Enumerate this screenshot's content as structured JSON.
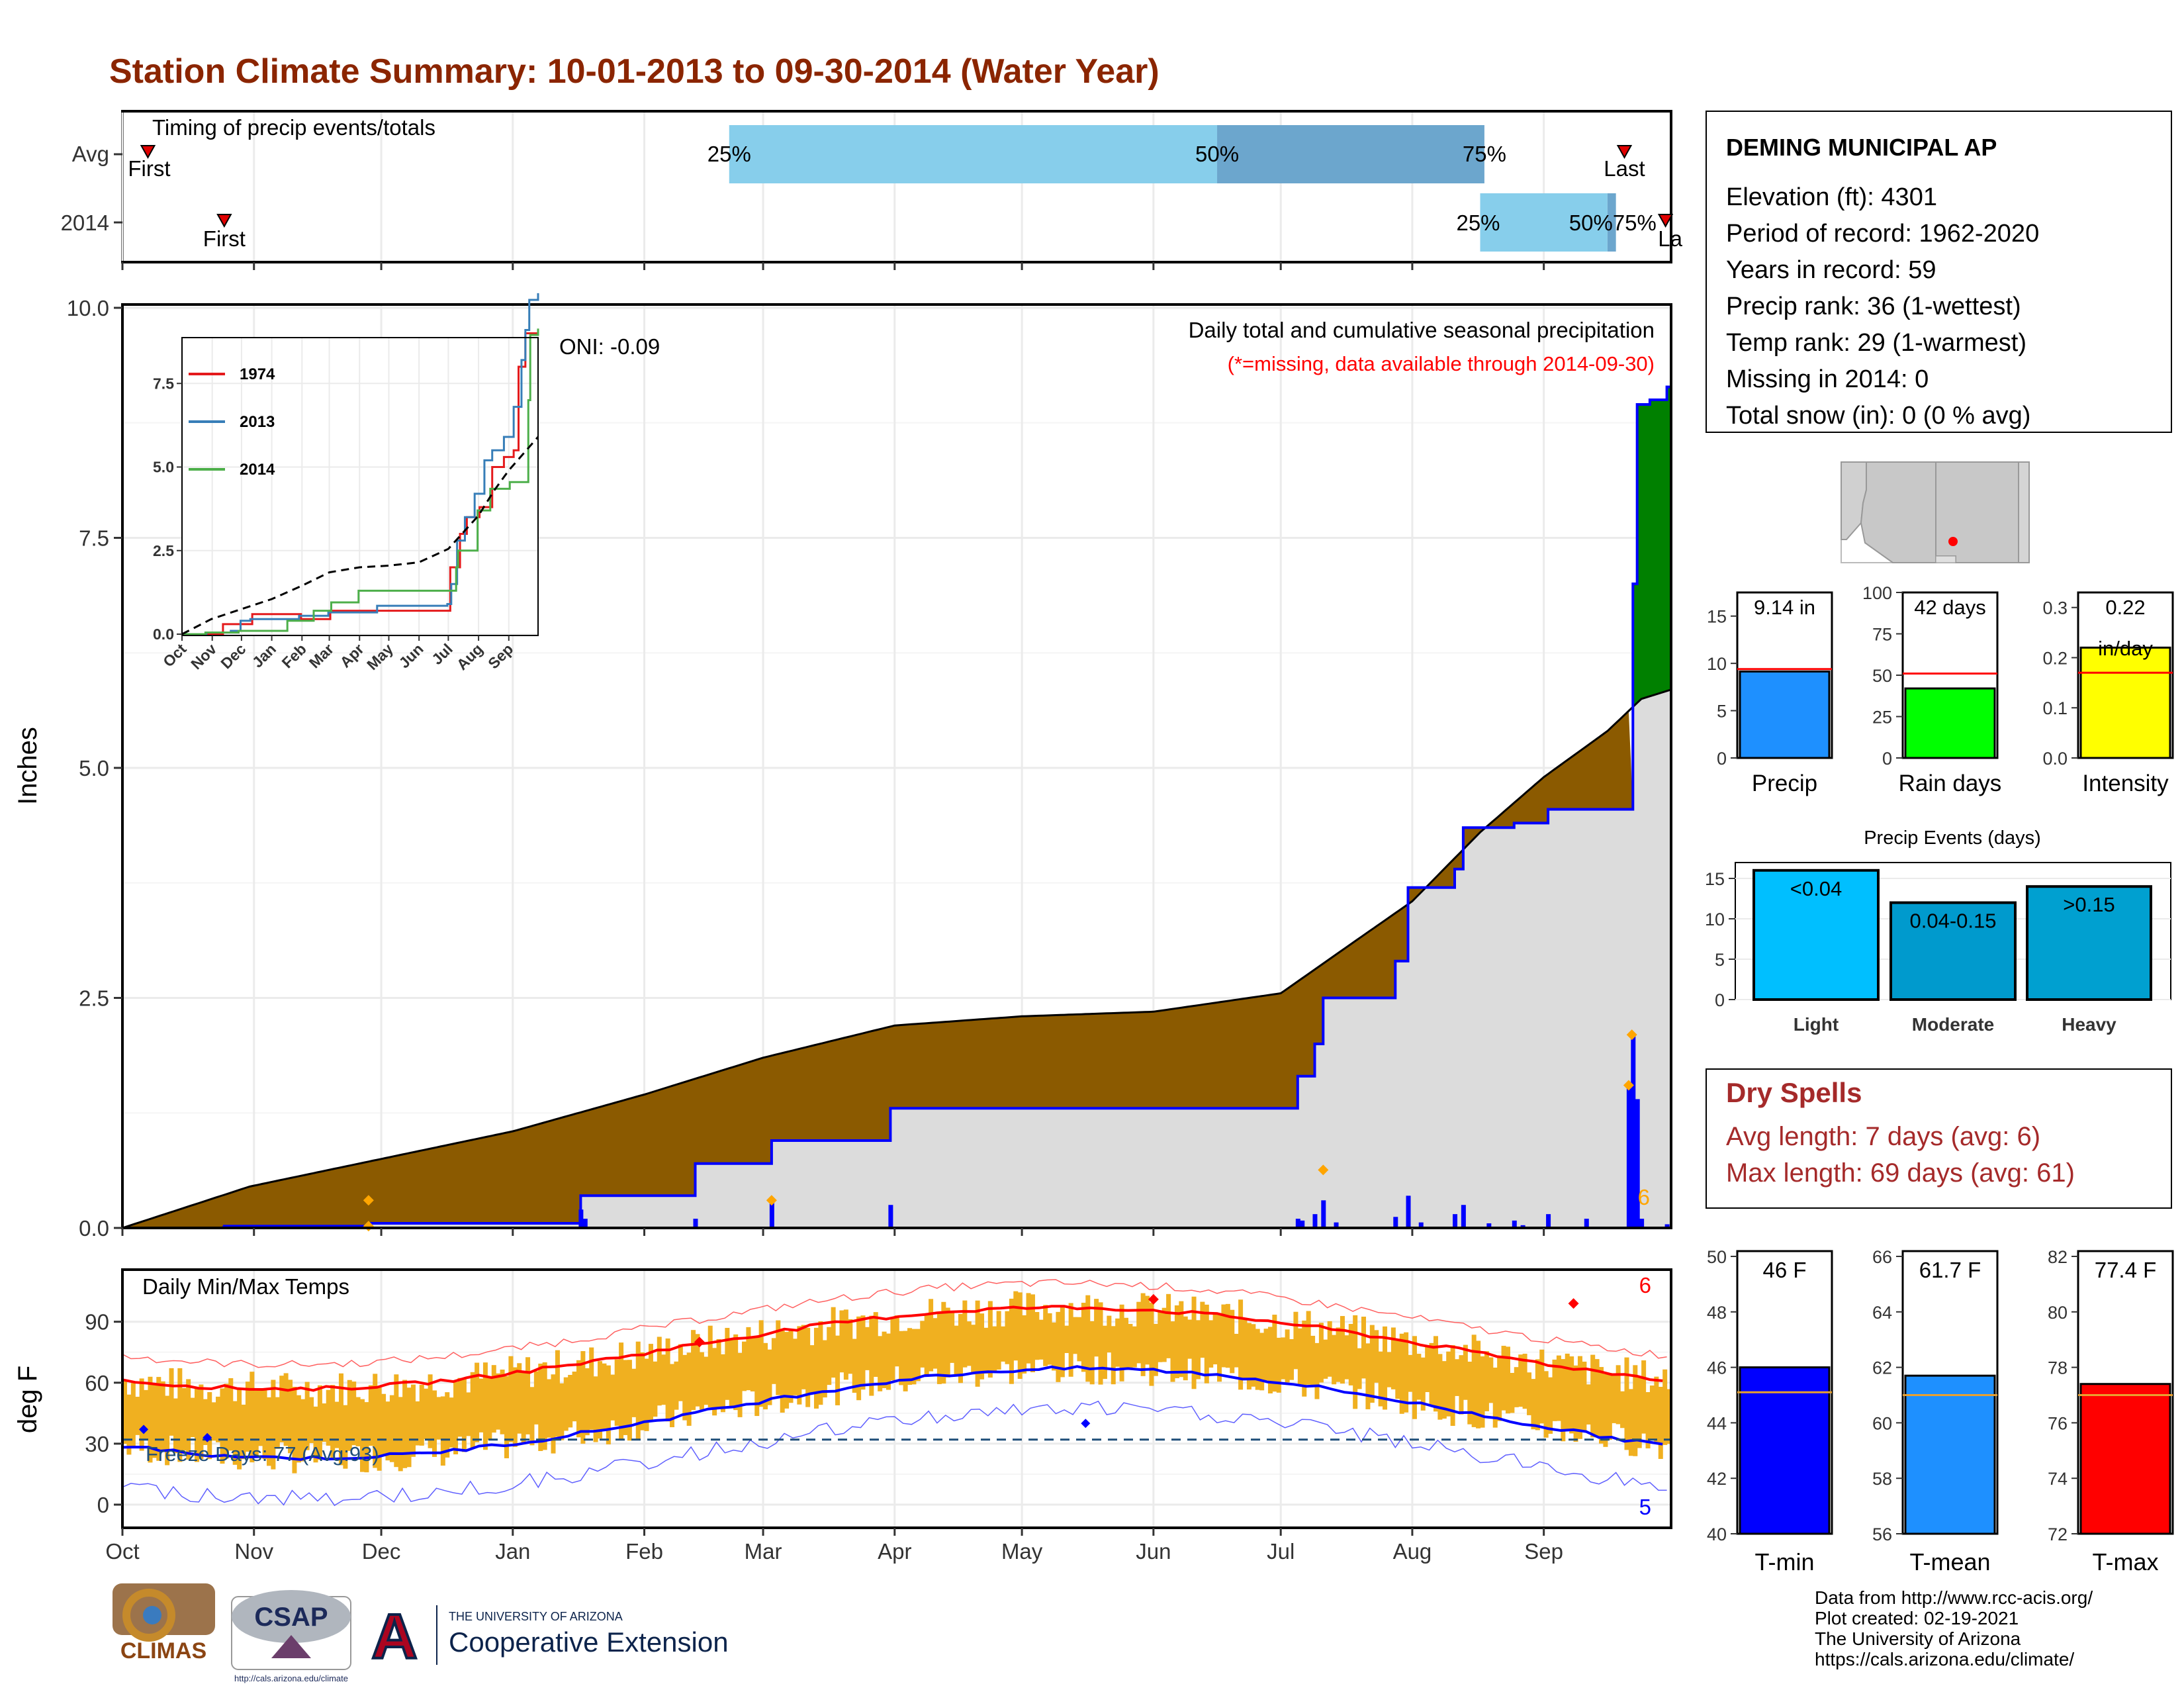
{
  "title": "Station Climate Summary: 10-01-2013 to 09-30-2014 (Water Year)",
  "months": [
    "Oct",
    "Nov",
    "Dec",
    "Jan",
    "Feb",
    "Mar",
    "Apr",
    "May",
    "Jun",
    "Jul",
    "Aug",
    "Sep"
  ],
  "timing": {
    "label": "Timing of precip events/totals",
    "row_avg": "Avg",
    "row_year": "2014",
    "first": "First",
    "last": "Last",
    "last_clipped": "La",
    "avg": {
      "first_doy": 6,
      "p25_doy": 143,
      "p50_doy": 258,
      "p75_doy": 321,
      "last_doy": 354
    },
    "year": {
      "first_doy": 24,
      "p25_doy": 320,
      "p50_doy": 350,
      "p75_doy": 352,
      "last_doy": 364
    },
    "labels": {
      "p25": "25%",
      "p50": "50%",
      "p75": "75%",
      "p50_75_overlap": "50%75%"
    }
  },
  "main": {
    "ylabel": "Inches",
    "oni": "ONI: -0.09",
    "caption1": "Daily total and cumulative seasonal precipitation",
    "caption2": "(*=missing, data available through 2014-09-30)",
    "extreme_count": "6",
    "ylim": [
      0,
      10
    ],
    "yticks": [
      "0.0",
      "2.5",
      "5.0",
      "7.5",
      "10.0"
    ],
    "colors": {
      "above": "#8B5A00",
      "below": "#DCDCDC",
      "wet": "#008000",
      "line": "#0000FF",
      "avg": "#000000",
      "marker": "#FFA500"
    }
  },
  "inset": {
    "yticks": [
      "0.0",
      "2.5",
      "5.0",
      "7.5"
    ],
    "xticks": [
      "Oct",
      "Nov",
      "Dec",
      "Jan",
      "Feb",
      "Mar",
      "Apr",
      "May",
      "Jun",
      "Jul",
      "Aug",
      "Sep"
    ],
    "legend": [
      {
        "name": "1974",
        "color": "#E41A1C"
      },
      {
        "name": "2013",
        "color": "#377EB8"
      },
      {
        "name": "2014",
        "color": "#4DAF4A"
      }
    ]
  },
  "temps": {
    "label": "Daily Min/Max Temps",
    "ylabel": "deg F",
    "yticks": [
      "0",
      "30",
      "60",
      "90"
    ],
    "freeze": "Freeze Days: 77 (Avg:93)",
    "max_count": "6",
    "min_count": "5"
  },
  "station": {
    "name": "DEMING MUNICIPAL AP",
    "lines": [
      "Elevation (ft): 4301",
      "Period of record: 1962-2020",
      "Years in record: 59",
      "Precip rank: 36 (1-wettest)",
      "Temp rank: 29 (1-warmest)",
      "Missing in 2014: 0",
      "Total snow (in): 0 (0 % avg)"
    ]
  },
  "summary_bars": [
    {
      "label": "Precip",
      "value_text": "9.14 in",
      "value": 9.14,
      "avg": 9.4,
      "max": 17.5,
      "ticks": [
        "0",
        "5",
        "10",
        "15"
      ],
      "tickvals": [
        0,
        5,
        10,
        15
      ],
      "color": "#1E90FF"
    },
    {
      "label": "Rain days",
      "value_text": "42 days",
      "value": 42,
      "avg": 51,
      "max": 100,
      "ticks": [
        "0",
        "25",
        "50",
        "75",
        "100"
      ],
      "tickvals": [
        0,
        25,
        50,
        75,
        100
      ],
      "color": "#00FF00"
    },
    {
      "label": "Intensity",
      "value_text": "0.22",
      "value_text2": "in/day",
      "value": 0.22,
      "avg": 0.17,
      "max": 0.33,
      "ticks": [
        "0.0",
        "0.1",
        "0.2",
        "0.3"
      ],
      "tickvals": [
        0,
        0.1,
        0.2,
        0.3
      ],
      "color": "#FFFF00"
    }
  ],
  "events": {
    "title": "Precip Events (days)",
    "ticks": [
      "0",
      "5",
      "10",
      "15"
    ],
    "bars": [
      {
        "label": "Light",
        "range": "<0.04",
        "value": 16,
        "color": "#00BFFF"
      },
      {
        "label": "Moderate",
        "range": "0.04-0.15",
        "value": 12,
        "color": "#009ACD"
      },
      {
        "label": "Heavy",
        "range": ">0.15",
        "value": 14,
        "color": "#00A0D0"
      }
    ]
  },
  "dry_spells": {
    "title": "Dry Spells",
    "avg": "Avg length: 7 days (avg: 6)",
    "max": "Max length: 69 days (avg: 61)"
  },
  "temp_bars": [
    {
      "label": "T-min",
      "value_text": "46 F",
      "value": 46,
      "avg": 45.1,
      "min": 40,
      "max": 50,
      "ticks": [
        "40",
        "42",
        "44",
        "46",
        "48",
        "50"
      ],
      "color": "#0000FF"
    },
    {
      "label": "T-mean",
      "value_text": "61.7 F",
      "value": 61.7,
      "avg": 61.0,
      "min": 56,
      "max": 66,
      "ticks": [
        "56",
        "58",
        "60",
        "62",
        "64",
        "66"
      ],
      "color": "#1E90FF"
    },
    {
      "label": "T-max",
      "value_text": "77.4 F",
      "value": 77.4,
      "avg": 77.0,
      "min": 72,
      "max": 82,
      "ticks": [
        "72",
        "74",
        "76",
        "78",
        "80",
        "82"
      ],
      "color": "#FF0000"
    }
  ],
  "footer": {
    "lines": [
      "Data from http://www.rcc-acis.org/",
      "Plot created: 02-19-2021",
      "The University of Arizona",
      "https://cals.arizona.edu/climate/"
    ],
    "logo_climas": "CLIMAS",
    "logo_csap": "CSAP",
    "logo_csap_url": "http://cals.arizona.edu/climate",
    "ua_small": "THE UNIVERSITY OF ARIZONA",
    "ua_big": "Cooperative Extension",
    "ua_letter": "A"
  }
}
